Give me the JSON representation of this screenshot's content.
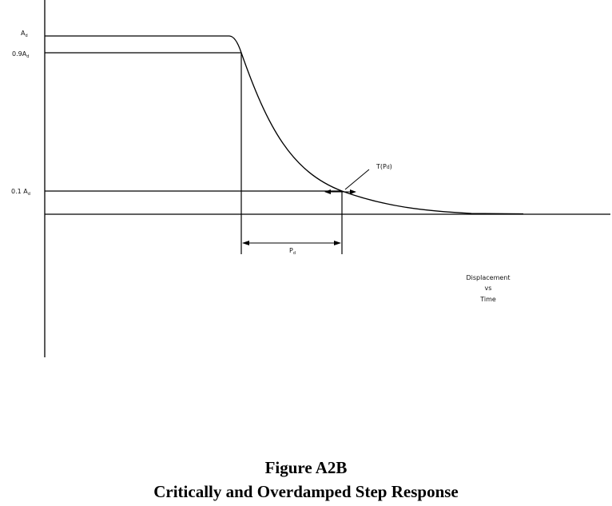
{
  "labels": {
    "a_d": "A",
    "a_d_sub": "d",
    "a_09": "0.9A",
    "a_09_sub": "d",
    "a_01": "0.1 A",
    "a_01_sub": "d",
    "t_label": "T(P",
    "t_label_sub": "d",
    "t_label_end": ")",
    "pd": "P",
    "pd_sub": "d",
    "plot_note": [
      "Displacement",
      "vs",
      "Time"
    ]
  },
  "caption": {
    "title": "Figure A2B",
    "subtitle": "Critically and Overdamped Step Response"
  }
}
